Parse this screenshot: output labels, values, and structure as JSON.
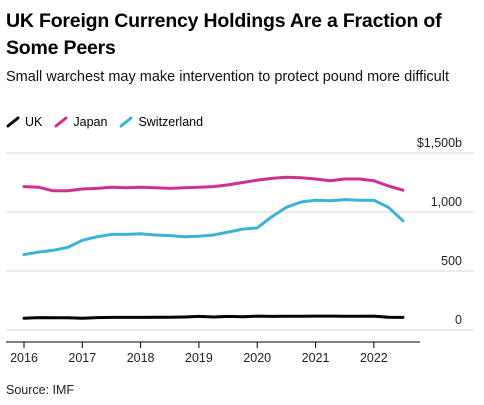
{
  "header": {
    "title": "UK Foreign Currency Holdings Are a Fraction of Some Peers",
    "subtitle": "Small warchest may make intervention to protect pound more difficult"
  },
  "footer": {
    "source": "Source: IMF"
  },
  "chart_data": {
    "type": "line",
    "title": "UK Foreign Currency Holdings Are a Fraction of Some Peers",
    "subtitle": "Small warchest may make intervention to protect pound more difficult",
    "xlabel": "",
    "ylabel": "",
    "x_ticks": [
      "2016",
      "2017",
      "2018",
      "2019",
      "2020",
      "2021",
      "2022"
    ],
    "y_ticks": [
      "0",
      "500",
      "1,000",
      "$1,500b"
    ],
    "ylim": [
      0,
      1500
    ],
    "xlim": [
      2015.9,
      2022.7
    ],
    "grid": true,
    "legend_position": "top-left",
    "series": [
      {
        "name": "UK",
        "color": "#000000",
        "x": [
          2016.0,
          2016.25,
          2016.5,
          2016.75,
          2017.0,
          2017.25,
          2017.5,
          2017.75,
          2018.0,
          2018.25,
          2018.5,
          2018.75,
          2019.0,
          2019.25,
          2019.5,
          2019.75,
          2020.0,
          2020.25,
          2020.5,
          2020.75,
          2021.0,
          2021.25,
          2021.5,
          2021.75,
          2022.0,
          2022.25,
          2022.5
        ],
        "y": [
          100,
          105,
          103,
          103,
          100,
          105,
          107,
          107,
          107,
          108,
          108,
          110,
          115,
          110,
          115,
          112,
          118,
          115,
          117,
          117,
          118,
          118,
          117,
          117,
          118,
          108,
          107
        ]
      },
      {
        "name": "Japan",
        "color": "#d02f8f",
        "x": [
          2016.0,
          2016.25,
          2016.5,
          2016.75,
          2017.0,
          2017.25,
          2017.5,
          2017.75,
          2018.0,
          2018.25,
          2018.5,
          2018.75,
          2019.0,
          2019.25,
          2019.5,
          2019.75,
          2020.0,
          2020.25,
          2020.5,
          2020.75,
          2021.0,
          2021.25,
          2021.5,
          2021.75,
          2022.0,
          2022.25,
          2022.5
        ],
        "y": [
          1215,
          1210,
          1180,
          1180,
          1195,
          1200,
          1210,
          1205,
          1210,
          1205,
          1200,
          1205,
          1210,
          1215,
          1230,
          1250,
          1270,
          1285,
          1295,
          1290,
          1280,
          1265,
          1280,
          1280,
          1265,
          1220,
          1185
        ]
      },
      {
        "name": "Switzerland",
        "color": "#3ab3d6",
        "x": [
          2016.0,
          2016.25,
          2016.5,
          2016.75,
          2017.0,
          2017.25,
          2017.5,
          2017.75,
          2018.0,
          2018.25,
          2018.5,
          2018.75,
          2019.0,
          2019.25,
          2019.5,
          2019.75,
          2020.0,
          2020.25,
          2020.5,
          2020.75,
          2021.0,
          2021.25,
          2021.5,
          2021.75,
          2022.0,
          2022.25,
          2022.5
        ],
        "y": [
          640,
          660,
          675,
          700,
          760,
          790,
          810,
          810,
          815,
          805,
          800,
          790,
          795,
          805,
          830,
          855,
          865,
          960,
          1040,
          1085,
          1100,
          1095,
          1105,
          1100,
          1100,
          1040,
          925
        ]
      }
    ]
  }
}
